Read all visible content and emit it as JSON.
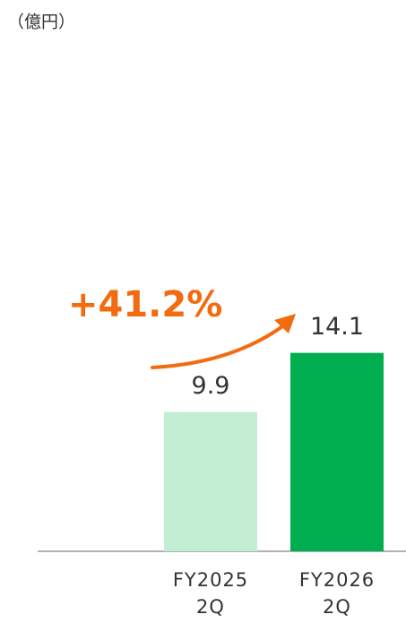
{
  "chart_data": {
    "type": "bar",
    "unit_label": "（億円）",
    "annotation": "+41.2%",
    "categories": [
      "FY2025\n2Q",
      "FY2026\n2Q"
    ],
    "values": [
      9.9,
      14.1
    ],
    "colors": [
      "#c2efd4",
      "#00ae50"
    ],
    "annotation_color": "#f26b0e"
  }
}
